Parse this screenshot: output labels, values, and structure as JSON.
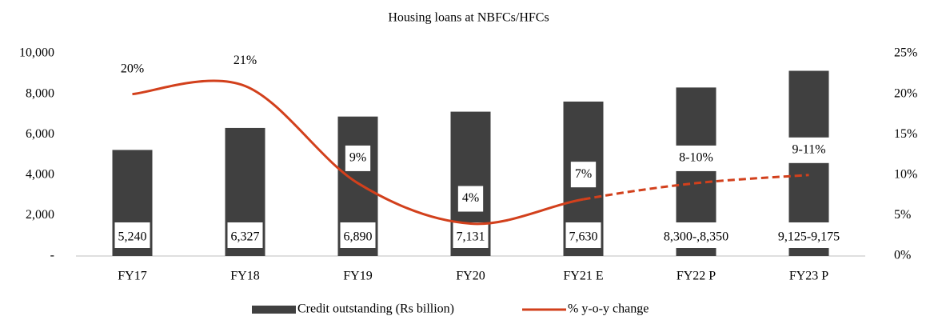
{
  "chart_data": {
    "type": "bar_line",
    "title": "Housing loans at NBFCs/HFCs",
    "categories": [
      "FY17",
      "FY18",
      "FY19",
      "FY20",
      "FY21 E",
      "FY22 P",
      "FY23 P"
    ],
    "series": [
      {
        "name": "Credit outstanding (Rs billion)",
        "type": "bar",
        "color": "#404040",
        "values": [
          5240,
          6327,
          6890,
          7131,
          7630,
          8325,
          9150
        ],
        "value_labels": [
          "5,240",
          "6,327",
          "6,890",
          "7,131",
          "7,630",
          "8,300-,8,350",
          "9,125-9,175"
        ]
      },
      {
        "name": "% y-o-y change",
        "type": "line",
        "axis": "y2",
        "color": "#d2401c",
        "values": [
          20,
          21,
          9,
          4,
          7,
          9,
          10
        ],
        "value_labels": [
          "20%",
          "21%",
          "9%",
          "4%",
          "7%",
          "8-10%",
          "9-11%"
        ],
        "dashed_from": "FY21 E"
      }
    ],
    "ylim": [
      0,
      10000
    ],
    "yticks": [
      {
        "value": 0,
        "label": "-"
      },
      {
        "value": 2000,
        "label": "2,000"
      },
      {
        "value": 4000,
        "label": "4,000"
      },
      {
        "value": 6000,
        "label": "6,000"
      },
      {
        "value": 8000,
        "label": "8,000"
      },
      {
        "value": 10000,
        "label": "10,000"
      }
    ],
    "y2lim": [
      0,
      25
    ],
    "y2ticks": [
      {
        "value": 0,
        "label": "0%"
      },
      {
        "value": 5,
        "label": "5%"
      },
      {
        "value": 10,
        "label": "10%"
      },
      {
        "value": 15,
        "label": "15%"
      },
      {
        "value": 20,
        "label": "20%"
      },
      {
        "value": 25,
        "label": "25%"
      }
    ],
    "legend": "bottom"
  }
}
